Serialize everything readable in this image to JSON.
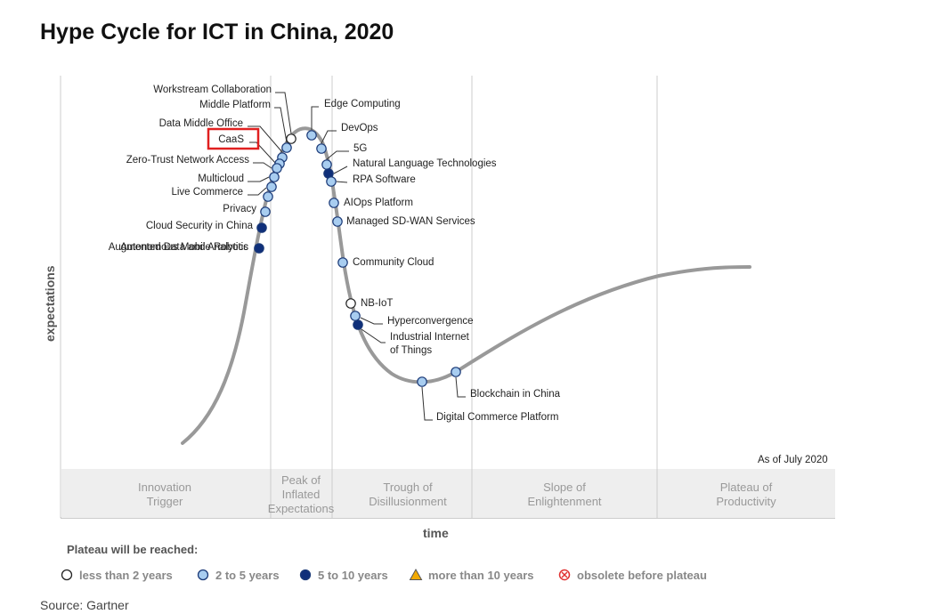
{
  "page": {
    "title": "Hype Cycle for ICT in China, 2020",
    "source": "Source: Gartner"
  },
  "chart_data": {
    "type": "hype-cycle",
    "title": "Hype Cycle for ICT in China, 2020",
    "xlabel": "time",
    "ylabel": "expectations",
    "as_of": "As of July 2020",
    "phases": [
      {
        "name": "innovation-trigger",
        "lines": [
          "Innovation",
          "Trigger"
        ]
      },
      {
        "name": "peak",
        "lines": [
          "Peak of",
          "Inflated",
          "Expectations"
        ]
      },
      {
        "name": "trough",
        "lines": [
          "Trough of",
          "Disillusionment"
        ]
      },
      {
        "name": "slope",
        "lines": [
          "Slope of",
          "Enlightenment"
        ]
      },
      {
        "name": "plateau",
        "lines": [
          "Plateau of",
          "Productivity"
        ]
      }
    ],
    "legend_title": "Plateau will be reached:",
    "legend": [
      {
        "key": "lt2",
        "label": "less than 2 years",
        "color": "#ffffff",
        "shape": "circle"
      },
      {
        "key": "2to5",
        "label": "2 to 5 years",
        "color": "#a8cdf0",
        "shape": "circle"
      },
      {
        "key": "5to10",
        "label": "5 to 10 years",
        "color": "#0f2f7a",
        "shape": "circle"
      },
      {
        "key": "gt10",
        "label": "more than 10 years",
        "color": "#f2a900",
        "shape": "triangle"
      },
      {
        "key": "obsolete",
        "label": "obsolete before plateau",
        "color": "#e03030",
        "shape": "x-circle"
      }
    ],
    "highlighted": "CaaS",
    "technologies": [
      {
        "name": "Workstream Collaboration",
        "category": "lt2"
      },
      {
        "name": "Middle Platform",
        "category": "2to5"
      },
      {
        "name": "Data Middle Office",
        "category": "2to5"
      },
      {
        "name": "CaaS",
        "category": "2to5"
      },
      {
        "name": "Zero-Trust Network Access",
        "category": "2to5"
      },
      {
        "name": "Multicloud",
        "category": "2to5"
      },
      {
        "name": "Live Commerce",
        "category": "2to5"
      },
      {
        "name": "Privacy",
        "category": "2to5"
      },
      {
        "name": "Cloud Security in China",
        "category": "2to5"
      },
      {
        "name": "Augmented Data and Analytics",
        "category": "5to10"
      },
      {
        "name": "Autonomous Mobile Robotic",
        "category": "5to10"
      },
      {
        "name": "Edge Computing",
        "category": "2to5"
      },
      {
        "name": "DevOps",
        "category": "2to5"
      },
      {
        "name": "5G",
        "category": "2to5"
      },
      {
        "name": "Natural Language Technologies",
        "category": "5to10"
      },
      {
        "name": "RPA Software",
        "category": "2to5"
      },
      {
        "name": "AIOps Platform",
        "category": "2to5"
      },
      {
        "name": "Managed SD-WAN Services",
        "category": "2to5"
      },
      {
        "name": "Community Cloud",
        "category": "2to5"
      },
      {
        "name": "NB-IoT",
        "category": "lt2"
      },
      {
        "name": "Hyperconvergence",
        "category": "2to5"
      },
      {
        "name": "Industrial Internet of Things",
        "category": "5to10"
      },
      {
        "name": "Digital Commerce Platform",
        "category": "2to5"
      },
      {
        "name": "Blockchain in China",
        "category": "2to5"
      }
    ]
  }
}
